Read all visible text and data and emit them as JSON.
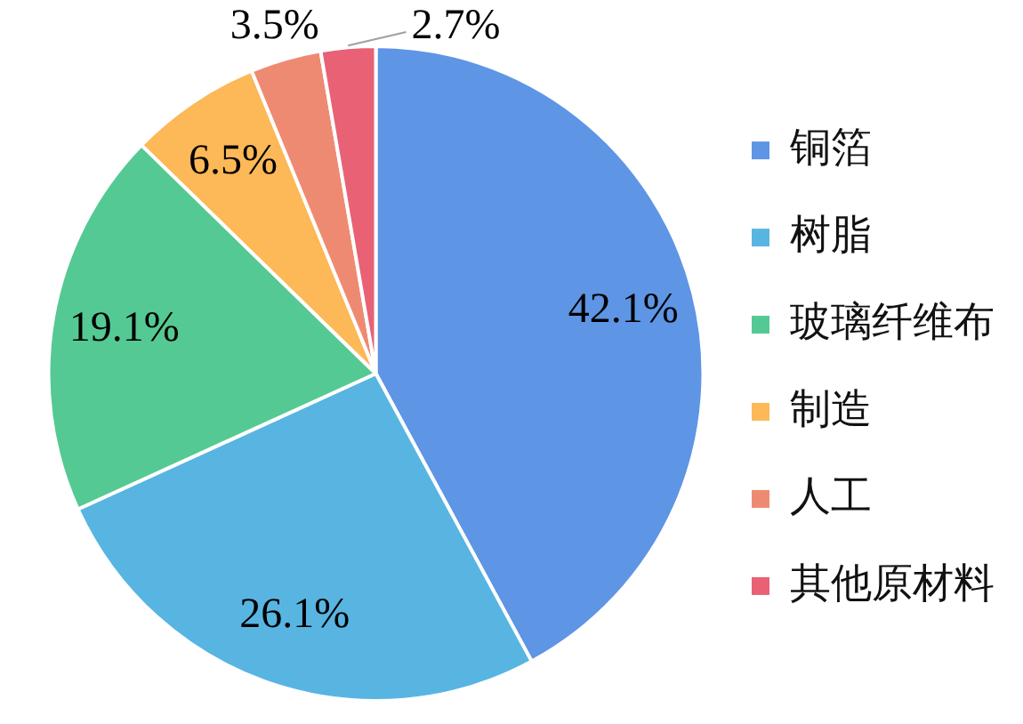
{
  "chart_data": {
    "type": "pie",
    "categories": [
      "铜箔",
      "树脂",
      "玻璃纤维布",
      "制造",
      "人工",
      "其他原材料"
    ],
    "values": [
      42.1,
      26.1,
      19.1,
      6.5,
      3.5,
      2.7
    ],
    "colors": [
      "#5e95e5",
      "#58b5e2",
      "#55c993",
      "#fdb857",
      "#ef8a72",
      "#e86175"
    ],
    "value_labels": [
      "42.1%",
      "26.1%",
      "19.1%",
      "6.5%",
      "3.5%",
      "2.7%"
    ],
    "legend": "right"
  }
}
